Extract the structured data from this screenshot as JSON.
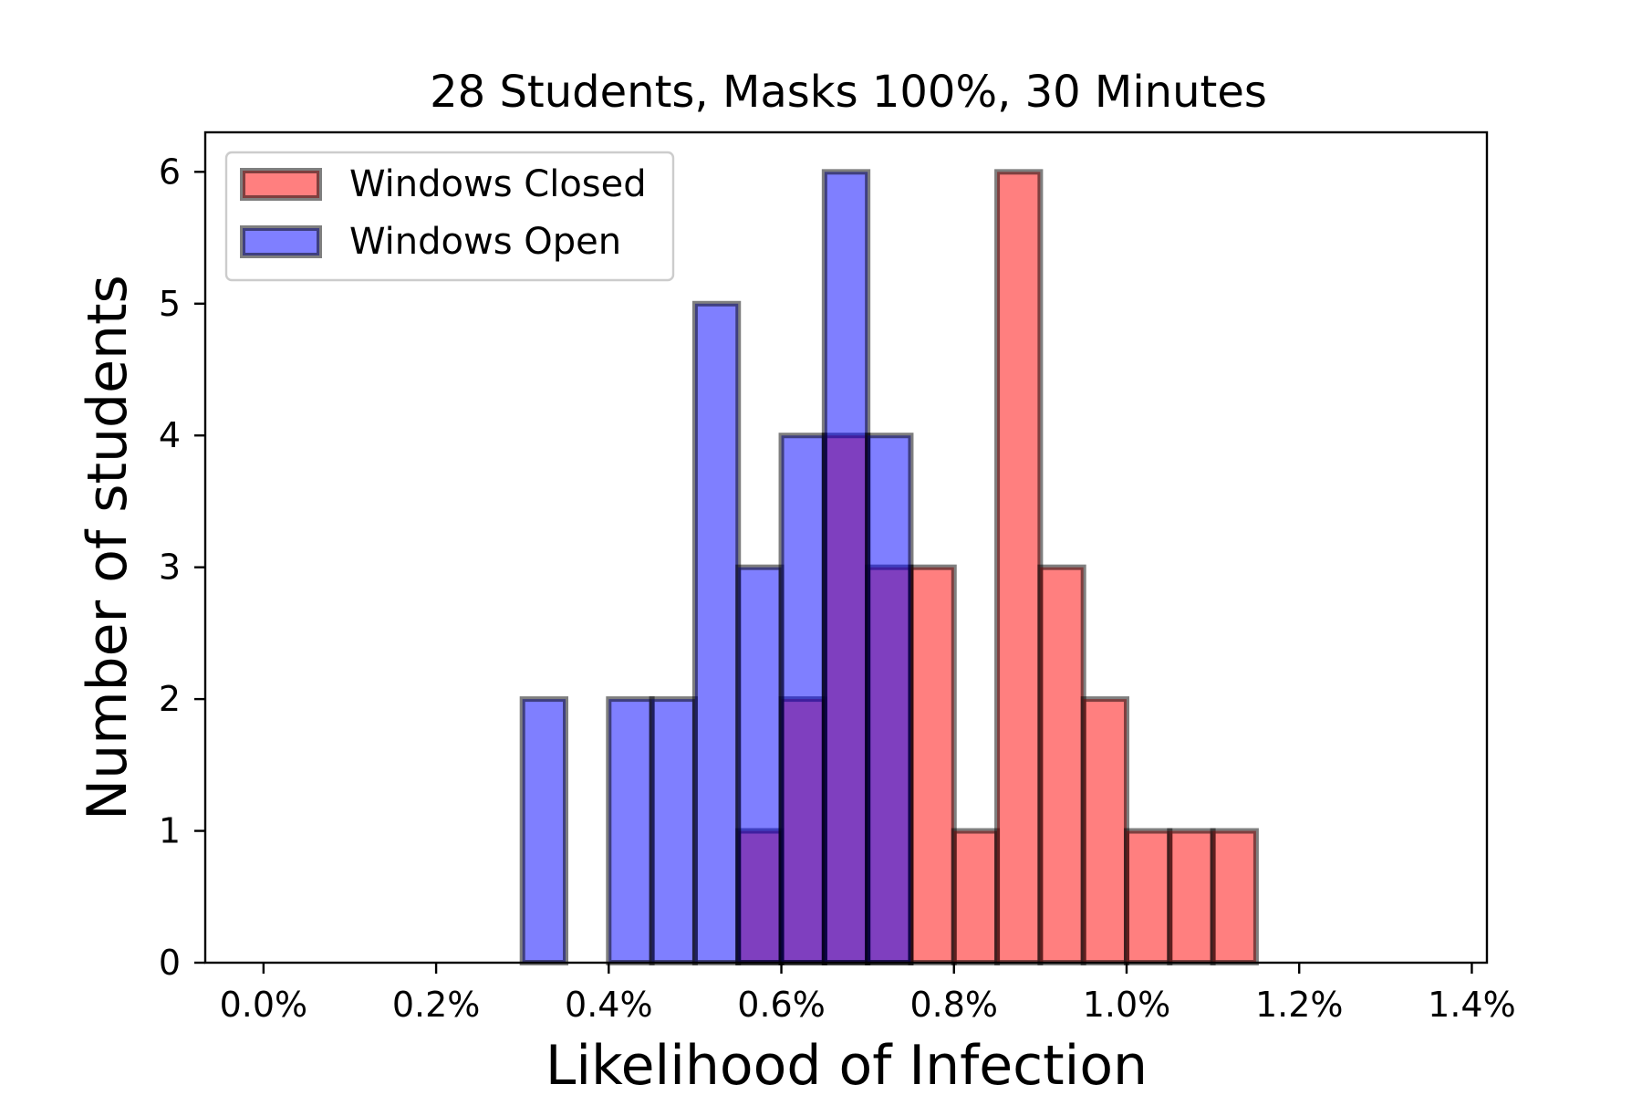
{
  "chart_data": {
    "type": "bar",
    "title": "28 Students, Masks 100%, 30 Minutes",
    "xlabel": "Likelihood of Infection",
    "ylabel": "Number of students",
    "xlim": [
      -0.0675,
      1.4175
    ],
    "ylim": [
      0,
      6.3
    ],
    "x_unit": "%",
    "x_ticks": [
      "0.0%",
      "0.2%",
      "0.4%",
      "0.6%",
      "0.8%",
      "1.0%",
      "1.2%",
      "1.4%"
    ],
    "x_tick_values": [
      0.0,
      0.2,
      0.4,
      0.6,
      0.8,
      1.0,
      1.2,
      1.4
    ],
    "y_ticks": [
      "0",
      "1",
      "2",
      "3",
      "4",
      "5",
      "6"
    ],
    "y_tick_values": [
      0,
      1,
      2,
      3,
      4,
      5,
      6
    ],
    "bin_edges": [
      0.0,
      0.05,
      0.1,
      0.15,
      0.2,
      0.25,
      0.3,
      0.35,
      0.4,
      0.45,
      0.5,
      0.55,
      0.6,
      0.65,
      0.7,
      0.75,
      0.8,
      0.85,
      0.9,
      0.95,
      1.0,
      1.05,
      1.1,
      1.15,
      1.2,
      1.25,
      1.3,
      1.35
    ],
    "grid": false,
    "legend_position": "top-left",
    "series": [
      {
        "name": "Windows Closed",
        "color": "#ff0000",
        "alpha": 0.5,
        "values": [
          0,
          0,
          0,
          0,
          0,
          0,
          0,
          0,
          0,
          0,
          0,
          1,
          2,
          4,
          3,
          3,
          1,
          6,
          3,
          2,
          1,
          1,
          1,
          0,
          0,
          0,
          0
        ]
      },
      {
        "name": "Windows Open",
        "color": "#0000ff",
        "alpha": 0.5,
        "values": [
          0,
          0,
          0,
          0,
          0,
          0,
          2,
          0,
          2,
          2,
          5,
          3,
          4,
          6,
          4,
          0,
          0,
          0,
          0,
          0,
          0,
          0,
          0,
          0,
          0,
          0,
          0
        ]
      }
    ]
  }
}
